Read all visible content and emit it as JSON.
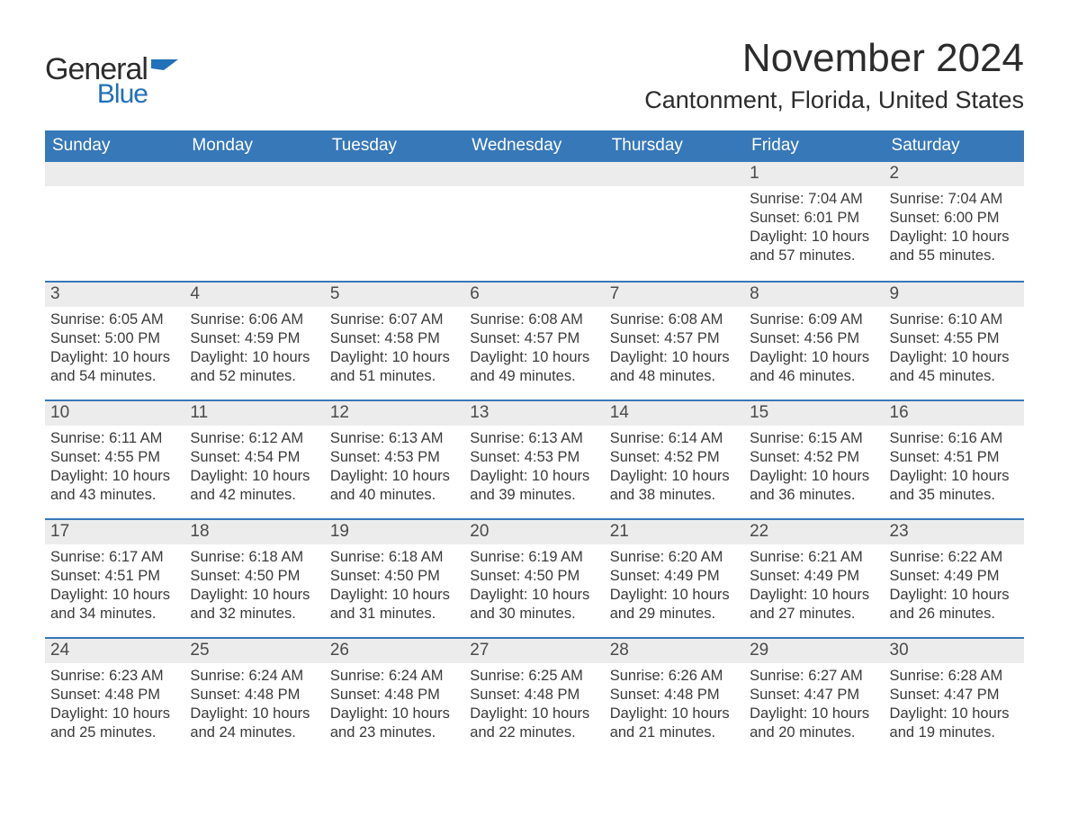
{
  "logo": {
    "text1": "General",
    "text2": "Blue",
    "color1": "#2c2c2c",
    "color2": "#2170b8"
  },
  "title": "November 2024",
  "location": "Cantonment, Florida, United States",
  "header_bg": "#3778b9",
  "header_fg": "#ffffff",
  "daynum_bg": "#ececec",
  "row_border": "#3778b9",
  "text_color": "#3a3a3a",
  "weekdays": [
    "Sunday",
    "Monday",
    "Tuesday",
    "Wednesday",
    "Thursday",
    "Friday",
    "Saturday"
  ],
  "weeks": [
    [
      null,
      null,
      null,
      null,
      null,
      {
        "n": "1",
        "sunrise": "Sunrise: 7:04 AM",
        "sunset": "Sunset: 6:01 PM",
        "daylight": "Daylight: 10 hours and 57 minutes."
      },
      {
        "n": "2",
        "sunrise": "Sunrise: 7:04 AM",
        "sunset": "Sunset: 6:00 PM",
        "daylight": "Daylight: 10 hours and 55 minutes."
      }
    ],
    [
      {
        "n": "3",
        "sunrise": "Sunrise: 6:05 AM",
        "sunset": "Sunset: 5:00 PM",
        "daylight": "Daylight: 10 hours and 54 minutes."
      },
      {
        "n": "4",
        "sunrise": "Sunrise: 6:06 AM",
        "sunset": "Sunset: 4:59 PM",
        "daylight": "Daylight: 10 hours and 52 minutes."
      },
      {
        "n": "5",
        "sunrise": "Sunrise: 6:07 AM",
        "sunset": "Sunset: 4:58 PM",
        "daylight": "Daylight: 10 hours and 51 minutes."
      },
      {
        "n": "6",
        "sunrise": "Sunrise: 6:08 AM",
        "sunset": "Sunset: 4:57 PM",
        "daylight": "Daylight: 10 hours and 49 minutes."
      },
      {
        "n": "7",
        "sunrise": "Sunrise: 6:08 AM",
        "sunset": "Sunset: 4:57 PM",
        "daylight": "Daylight: 10 hours and 48 minutes."
      },
      {
        "n": "8",
        "sunrise": "Sunrise: 6:09 AM",
        "sunset": "Sunset: 4:56 PM",
        "daylight": "Daylight: 10 hours and 46 minutes."
      },
      {
        "n": "9",
        "sunrise": "Sunrise: 6:10 AM",
        "sunset": "Sunset: 4:55 PM",
        "daylight": "Daylight: 10 hours and 45 minutes."
      }
    ],
    [
      {
        "n": "10",
        "sunrise": "Sunrise: 6:11 AM",
        "sunset": "Sunset: 4:55 PM",
        "daylight": "Daylight: 10 hours and 43 minutes."
      },
      {
        "n": "11",
        "sunrise": "Sunrise: 6:12 AM",
        "sunset": "Sunset: 4:54 PM",
        "daylight": "Daylight: 10 hours and 42 minutes."
      },
      {
        "n": "12",
        "sunrise": "Sunrise: 6:13 AM",
        "sunset": "Sunset: 4:53 PM",
        "daylight": "Daylight: 10 hours and 40 minutes."
      },
      {
        "n": "13",
        "sunrise": "Sunrise: 6:13 AM",
        "sunset": "Sunset: 4:53 PM",
        "daylight": "Daylight: 10 hours and 39 minutes."
      },
      {
        "n": "14",
        "sunrise": "Sunrise: 6:14 AM",
        "sunset": "Sunset: 4:52 PM",
        "daylight": "Daylight: 10 hours and 38 minutes."
      },
      {
        "n": "15",
        "sunrise": "Sunrise: 6:15 AM",
        "sunset": "Sunset: 4:52 PM",
        "daylight": "Daylight: 10 hours and 36 minutes."
      },
      {
        "n": "16",
        "sunrise": "Sunrise: 6:16 AM",
        "sunset": "Sunset: 4:51 PM",
        "daylight": "Daylight: 10 hours and 35 minutes."
      }
    ],
    [
      {
        "n": "17",
        "sunrise": "Sunrise: 6:17 AM",
        "sunset": "Sunset: 4:51 PM",
        "daylight": "Daylight: 10 hours and 34 minutes."
      },
      {
        "n": "18",
        "sunrise": "Sunrise: 6:18 AM",
        "sunset": "Sunset: 4:50 PM",
        "daylight": "Daylight: 10 hours and 32 minutes."
      },
      {
        "n": "19",
        "sunrise": "Sunrise: 6:18 AM",
        "sunset": "Sunset: 4:50 PM",
        "daylight": "Daylight: 10 hours and 31 minutes."
      },
      {
        "n": "20",
        "sunrise": "Sunrise: 6:19 AM",
        "sunset": "Sunset: 4:50 PM",
        "daylight": "Daylight: 10 hours and 30 minutes."
      },
      {
        "n": "21",
        "sunrise": "Sunrise: 6:20 AM",
        "sunset": "Sunset: 4:49 PM",
        "daylight": "Daylight: 10 hours and 29 minutes."
      },
      {
        "n": "22",
        "sunrise": "Sunrise: 6:21 AM",
        "sunset": "Sunset: 4:49 PM",
        "daylight": "Daylight: 10 hours and 27 minutes."
      },
      {
        "n": "23",
        "sunrise": "Sunrise: 6:22 AM",
        "sunset": "Sunset: 4:49 PM",
        "daylight": "Daylight: 10 hours and 26 minutes."
      }
    ],
    [
      {
        "n": "24",
        "sunrise": "Sunrise: 6:23 AM",
        "sunset": "Sunset: 4:48 PM",
        "daylight": "Daylight: 10 hours and 25 minutes."
      },
      {
        "n": "25",
        "sunrise": "Sunrise: 6:24 AM",
        "sunset": "Sunset: 4:48 PM",
        "daylight": "Daylight: 10 hours and 24 minutes."
      },
      {
        "n": "26",
        "sunrise": "Sunrise: 6:24 AM",
        "sunset": "Sunset: 4:48 PM",
        "daylight": "Daylight: 10 hours and 23 minutes."
      },
      {
        "n": "27",
        "sunrise": "Sunrise: 6:25 AM",
        "sunset": "Sunset: 4:48 PM",
        "daylight": "Daylight: 10 hours and 22 minutes."
      },
      {
        "n": "28",
        "sunrise": "Sunrise: 6:26 AM",
        "sunset": "Sunset: 4:48 PM",
        "daylight": "Daylight: 10 hours and 21 minutes."
      },
      {
        "n": "29",
        "sunrise": "Sunrise: 6:27 AM",
        "sunset": "Sunset: 4:47 PM",
        "daylight": "Daylight: 10 hours and 20 minutes."
      },
      {
        "n": "30",
        "sunrise": "Sunrise: 6:28 AM",
        "sunset": "Sunset: 4:47 PM",
        "daylight": "Daylight: 10 hours and 19 minutes."
      }
    ]
  ]
}
